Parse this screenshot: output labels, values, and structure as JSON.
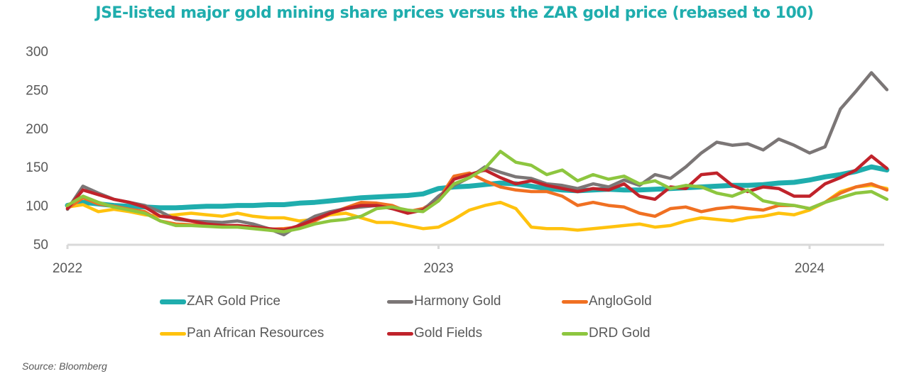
{
  "chart_data": {
    "type": "line",
    "title": "JSE-listed major gold mining share prices versus the ZAR gold price (rebased to 100)",
    "xlabel": "",
    "ylabel": "",
    "ylim": [
      50,
      300
    ],
    "xlim": [
      "2022-01",
      "2024-03"
    ],
    "y_ticks": [
      "300",
      "250",
      "200",
      "150",
      "100",
      "50"
    ],
    "x_ticks": [
      "2022",
      "2023",
      "2024"
    ],
    "grid": false,
    "legend_position": "bottom",
    "x": [
      0,
      0.5,
      1,
      1.5,
      2,
      2.5,
      3,
      3.5,
      4,
      4.5,
      5,
      5.5,
      6,
      6.5,
      7,
      7.5,
      8,
      8.5,
      9,
      9.5,
      10,
      10.5,
      11,
      11.5,
      12,
      12.5,
      13,
      13.5,
      14,
      14.5,
      15,
      15.5,
      16,
      16.5,
      17,
      17.5,
      18,
      18.5,
      19,
      19.5,
      20,
      20.5,
      21,
      21.5,
      22,
      22.5,
      23,
      23.5,
      24,
      24.5,
      25,
      25.5,
      26,
      26.5
    ],
    "x_unit": "months since Jan 2022",
    "series": [
      {
        "name": "ZAR Gold Price",
        "color": "#1fadad",
        "values": [
          100,
          104,
          102,
          100,
          99,
          98,
          97,
          97,
          98,
          99,
          99,
          100,
          100,
          101,
          101,
          103,
          104,
          106,
          108,
          110,
          111,
          112,
          113,
          115,
          122,
          124,
          125,
          127,
          129,
          128,
          125,
          122,
          120,
          119,
          120,
          121,
          120,
          120,
          121,
          122,
          123,
          124,
          125,
          126,
          126,
          127,
          129,
          130,
          133,
          137,
          140,
          144,
          150,
          146
        ]
      },
      {
        "name": "Harmony Gold",
        "color": "#7b7676",
        "values": [
          95,
          125,
          116,
          108,
          104,
          100,
          92,
          82,
          80,
          79,
          78,
          80,
          76,
          70,
          62,
          75,
          86,
          92,
          96,
          98,
          100,
          96,
          92,
          94,
          112,
          126,
          136,
          150,
          143,
          137,
          135,
          128,
          126,
          122,
          128,
          124,
          133,
          126,
          140,
          135,
          150,
          168,
          182,
          178,
          180,
          172,
          186,
          178,
          168,
          176,
          225,
          248,
          272,
          250
        ]
      },
      {
        "name": "AngloGold",
        "color": "#f07022",
        "values": [
          96,
          110,
          102,
          99,
          95,
          92,
          80,
          76,
          75,
          74,
          73,
          74,
          72,
          69,
          70,
          72,
          80,
          90,
          97,
          104,
          103,
          100,
          92,
          96,
          108,
          138,
          142,
          132,
          124,
          120,
          118,
          118,
          112,
          100,
          104,
          100,
          98,
          90,
          86,
          96,
          98,
          92,
          96,
          98,
          96,
          94,
          100,
          100,
          96,
          104,
          116,
          124,
          128,
          120
        ]
      },
      {
        "name": "Pan African Resources",
        "color": "#ffc20e",
        "values": [
          98,
          101,
          92,
          95,
          92,
          88,
          86,
          88,
          90,
          88,
          86,
          90,
          86,
          84,
          84,
          80,
          82,
          88,
          90,
          84,
          78,
          78,
          74,
          70,
          72,
          82,
          94,
          100,
          104,
          96,
          72,
          70,
          70,
          68,
          70,
          72,
          74,
          76,
          72,
          74,
          80,
          84,
          82,
          80,
          84,
          86,
          90,
          88,
          94,
          104,
          118,
          124,
          126,
          122
        ]
      },
      {
        "name": "Gold Fields",
        "color": "#c0232b",
        "values": [
          96,
          120,
          114,
          108,
          104,
          98,
          86,
          84,
          80,
          76,
          74,
          74,
          72,
          70,
          68,
          74,
          82,
          90,
          96,
          100,
          100,
          96,
          90,
          94,
          106,
          134,
          140,
          146,
          136,
          128,
          132,
          126,
          122,
          118,
          122,
          120,
          128,
          112,
          108,
          124,
          122,
          140,
          142,
          126,
          118,
          124,
          122,
          112,
          112,
          128,
          136,
          146,
          164,
          148
        ]
      },
      {
        "name": "DRD Gold",
        "color": "#8dc63f",
        "values": [
          100,
          112,
          104,
          98,
          94,
          90,
          80,
          74,
          74,
          73,
          72,
          72,
          70,
          68,
          66,
          70,
          76,
          80,
          82,
          86,
          96,
          98,
          94,
          92,
          106,
          128,
          136,
          148,
          170,
          156,
          152,
          140,
          146,
          132,
          140,
          134,
          138,
          128,
          132,
          122,
          126,
          124,
          116,
          112,
          120,
          106,
          102,
          100,
          96,
          104,
          110,
          116,
          118,
          108
        ]
      }
    ]
  },
  "legend": {
    "items": [
      {
        "label": "ZAR Gold Price",
        "color": "#1fadad"
      },
      {
        "label": "Harmony Gold",
        "color": "#7b7676"
      },
      {
        "label": "AngloGold",
        "color": "#f07022"
      },
      {
        "label": "Pan African Resources",
        "color": "#ffc20e"
      },
      {
        "label": "Gold Fields",
        "color": "#c0232b"
      },
      {
        "label": "DRD Gold",
        "color": "#8dc63f"
      }
    ]
  },
  "source": "Source: Bloomberg"
}
